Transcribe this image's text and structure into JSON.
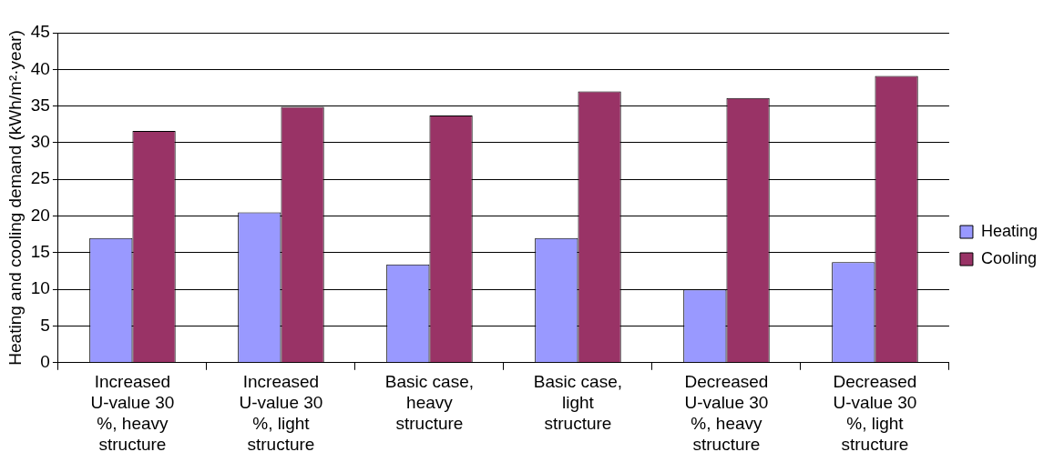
{
  "chart_data": {
    "type": "bar",
    "ylabel": "Heating and cooling demand (kWh/m²·year)",
    "categories": [
      "Increased U-value 30 %, heavy structure",
      "Increased U-value 30 %, light structure",
      "Basic case, heavy structure",
      "Basic case, light structure",
      "Decreased U-value 30 %, heavy structure",
      "Decreased U-value 30 %, light structure"
    ],
    "series": [
      {
        "name": "Heating",
        "color": "#9999ff",
        "values": [
          17.0,
          20.5,
          13.4,
          17.0,
          10.0,
          13.7
        ]
      },
      {
        "name": "Cooling",
        "color": "#993366",
        "values": [
          31.6,
          34.9,
          33.7,
          37.0,
          36.1,
          39.1
        ]
      }
    ],
    "ylim": [
      0,
      45
    ],
    "yticks": [
      0,
      5,
      10,
      15,
      20,
      25,
      30,
      35,
      40,
      45
    ],
    "grid": "y",
    "legend": "right"
  }
}
